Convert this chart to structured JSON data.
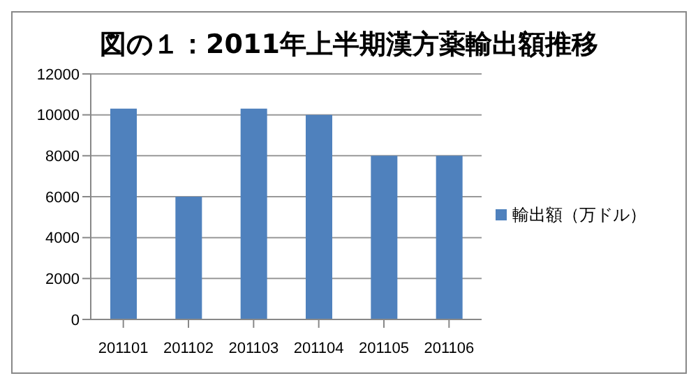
{
  "chart_data": {
    "type": "bar",
    "title": "図の１：2011年上半期漢方薬輸出額推移",
    "categories": [
      "201101",
      "201102",
      "201103",
      "201104",
      "201105",
      "201106"
    ],
    "series": [
      {
        "name": "輸出額（万ドル）",
        "color": "#4f81bd",
        "values": [
          10300,
          6000,
          10300,
          10000,
          8000,
          8000
        ]
      }
    ],
    "ylim": [
      0,
      12000
    ],
    "yticks": [
      0,
      2000,
      4000,
      6000,
      8000,
      10000,
      12000
    ],
    "grid": "y",
    "legend": "right"
  }
}
